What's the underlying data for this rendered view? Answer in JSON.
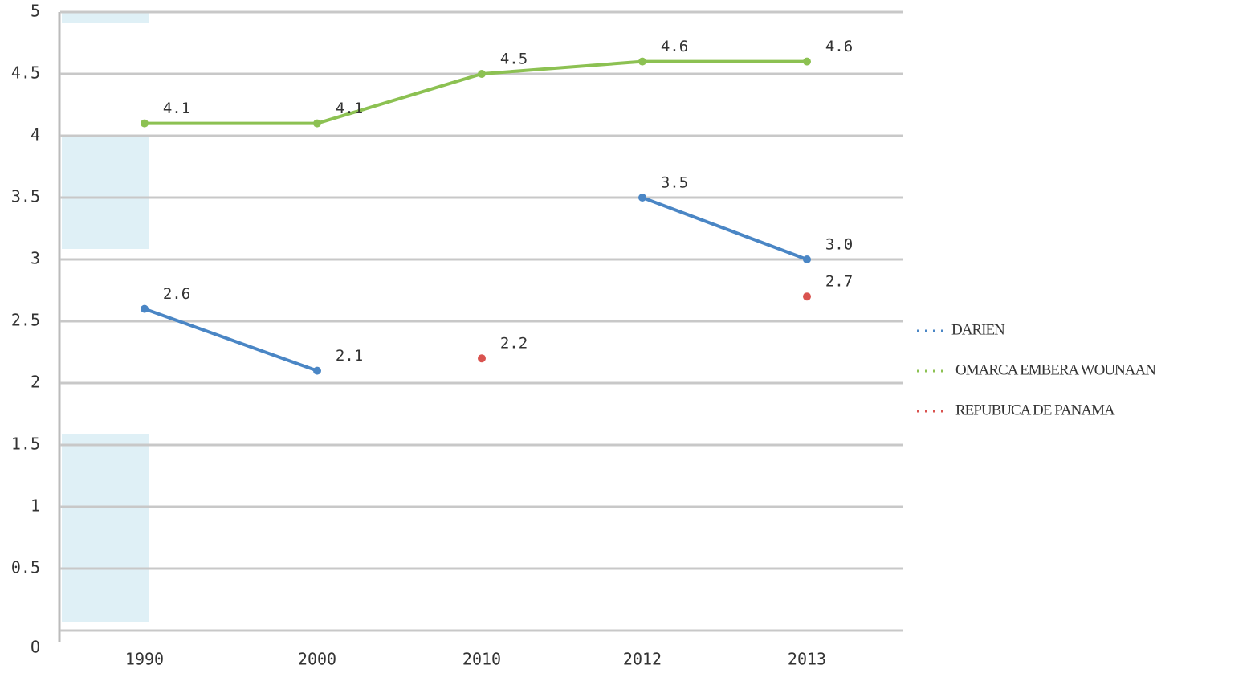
{
  "chart_data": {
    "type": "line",
    "categories": [
      "1990",
      "2000",
      "2010",
      "2012",
      "2013"
    ],
    "series": [
      {
        "name": "DARIEN",
        "color": "#4a86c5",
        "values": [
          2.6,
          2.1,
          null,
          3.5,
          3.0
        ],
        "value_labels": [
          "2.6",
          "2.1",
          null,
          "3.5",
          "3.0"
        ]
      },
      {
        "name": "OMARCA EMBERA WOUNAAN",
        "color": "#8cc152",
        "values": [
          4.1,
          4.1,
          4.5,
          4.6,
          4.6
        ],
        "value_labels": [
          "4.1",
          "4.1",
          "4.5",
          "4.6",
          "4.6"
        ]
      },
      {
        "name": "REPUBUCA DE PANAMA",
        "color": "#d9534f",
        "values": [
          null,
          null,
          2.2,
          null,
          2.7
        ],
        "value_labels": [
          null,
          null,
          "2.2",
          null,
          "2.7"
        ]
      }
    ],
    "ylim": [
      0,
      5
    ],
    "yticks": [
      {
        "value": 0,
        "label": "O"
      },
      0.5,
      1,
      1.5,
      2,
      2.5,
      3,
      3.5,
      4,
      4.5,
      5
    ],
    "grid": true
  }
}
